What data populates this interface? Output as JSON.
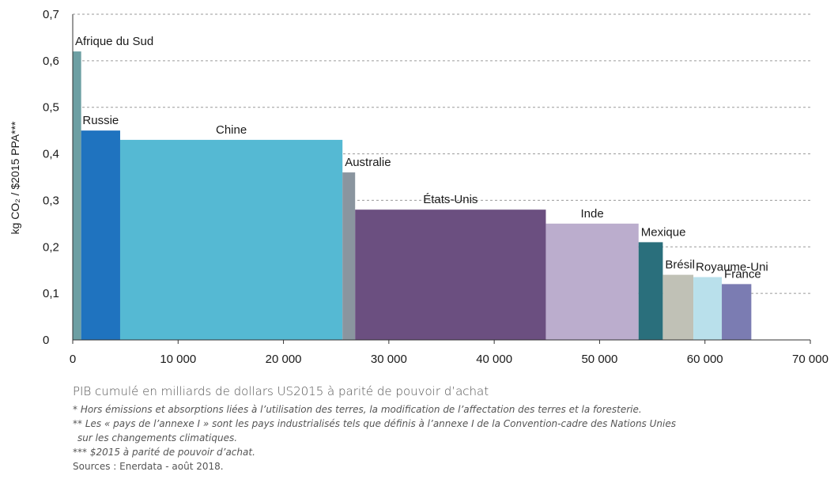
{
  "chart_data": {
    "type": "bar",
    "variant": "variable-width",
    "ylabel": "kg CO₂ / $2015 PPA***",
    "xlabel": "PIB cumulé en milliards de dollars US2015 à parité de pouvoir d’achat",
    "xlim": [
      0,
      70000
    ],
    "ylim": [
      0,
      0.7
    ],
    "x_ticks": [
      "0",
      "10 000",
      "20 000",
      "30 000",
      "40 000",
      "50 000",
      "60 000",
      "70 000"
    ],
    "y_ticks": [
      "0",
      "0,1",
      "0,2",
      "0,3",
      "0,4",
      "0,5",
      "0,6",
      "0,7"
    ],
    "grid": true,
    "bars": [
      {
        "name": "Afrique du Sud",
        "x_start": 0,
        "x_end": 800,
        "value": 0.62,
        "color": "#6d9fa3"
      },
      {
        "name": "Russie",
        "x_start": 800,
        "x_end": 4500,
        "value": 0.45,
        "color": "#1f73bf"
      },
      {
        "name": "Chine",
        "x_start": 4500,
        "x_end": 25600,
        "value": 0.43,
        "color": "#55b9d3"
      },
      {
        "name": "Australie",
        "x_start": 25600,
        "x_end": 26800,
        "value": 0.36,
        "color": "#8a959f"
      },
      {
        "name": "États-Unis",
        "x_start": 26800,
        "x_end": 44900,
        "value": 0.28,
        "color": "#6b4f80"
      },
      {
        "name": "Inde",
        "x_start": 44900,
        "x_end": 53700,
        "value": 0.25,
        "color": "#bbadcd"
      },
      {
        "name": "Mexique",
        "x_start": 53700,
        "x_end": 56000,
        "value": 0.21,
        "color": "#2a6f7c"
      },
      {
        "name": "Brésil",
        "x_start": 56000,
        "x_end": 58900,
        "value": 0.14,
        "color": "#c0c1b6"
      },
      {
        "name": "Royaume-Uni",
        "x_start": 58900,
        "x_end": 61600,
        "value": 0.135,
        "color": "#b9e0eb"
      },
      {
        "name": "France",
        "x_start": 61600,
        "x_end": 64400,
        "value": 0.12,
        "color": "#7b7cb2"
      }
    ]
  },
  "footnotes": {
    "note1": "* Hors émissions et absorptions liées à l’utilisation des terres, la modification de l’affectation des terres et la foresterie.",
    "note2a": "** Les « pays de l’annexe I » sont les pays industrialisés tels que définis à l’annexe I de la Convention-cadre des Nations Unies",
    "note2b": "sur les changements climatiques.",
    "note3": "*** $2015 à parité de pouvoir d’achat.",
    "sources": "Sources : Enerdata - août 2018."
  }
}
